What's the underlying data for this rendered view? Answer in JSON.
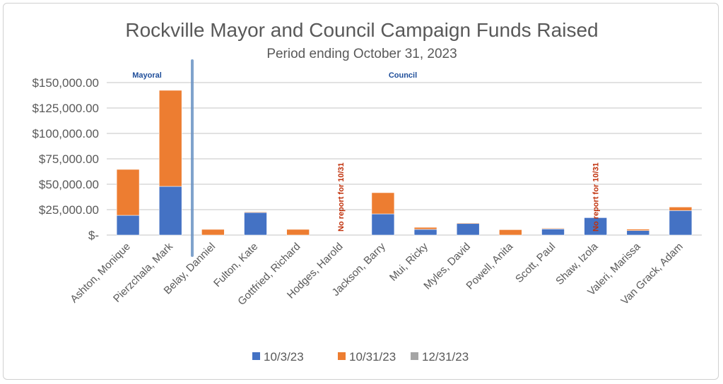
{
  "chart_data": {
    "type": "bar",
    "stacked": true,
    "title": "Rockville Mayor and Council Campaign Funds Raised",
    "subtitle": "Period ending October 31, 2023",
    "xlabel": "",
    "ylabel": "",
    "ylim": [
      0,
      150000
    ],
    "yticks": [
      0,
      25000,
      50000,
      75000,
      100000,
      125000,
      150000
    ],
    "ytick_labels": [
      "$-",
      "$25,000.00",
      "$50,000.00",
      "$75,000.00",
      "$100,000.00",
      "$125,000.00",
      "$150,000.00"
    ],
    "grid": true,
    "legend_position": "bottom",
    "categories": [
      "Ashton, Monique",
      "Pierzchala, Mark",
      "Belay, Danniel",
      "Fulton, Kate",
      "Gottfried, Richard",
      "Hodges, Harold",
      "Jackson, Barry",
      "Mui, Ricky",
      "Myles, David",
      "Powell, Anita",
      "Scott, Paul",
      "Shaw, Izola",
      "Valeri, Marissa",
      "Van Grack, Adam"
    ],
    "series": [
      {
        "name": "10/3/23",
        "color": "#4472c4",
        "values": [
          19400,
          47900,
          0,
          22200,
          0,
          0,
          20800,
          5600,
          11300,
          0,
          6000,
          17100,
          4400,
          24100
        ]
      },
      {
        "name": "10/31/23",
        "color": "#ed7d31",
        "values": [
          45200,
          94500,
          5600,
          700,
          5600,
          0,
          20900,
          2000,
          700,
          5300,
          700,
          0,
          1400,
          3500
        ]
      },
      {
        "name": "12/31/23",
        "color": "#a5a5a5",
        "values": [
          0,
          0,
          0,
          0,
          0,
          0,
          0,
          0,
          0,
          0,
          0,
          0,
          0,
          0
        ]
      }
    ],
    "annotations": {
      "mayoral": "Mayoral",
      "council": "Council",
      "no_report": [
        {
          "category": "Hodges, Harold",
          "text": "No report for 10/31"
        },
        {
          "category": "Shaw, Izola",
          "text": "No report for 10/31"
        }
      ]
    }
  }
}
